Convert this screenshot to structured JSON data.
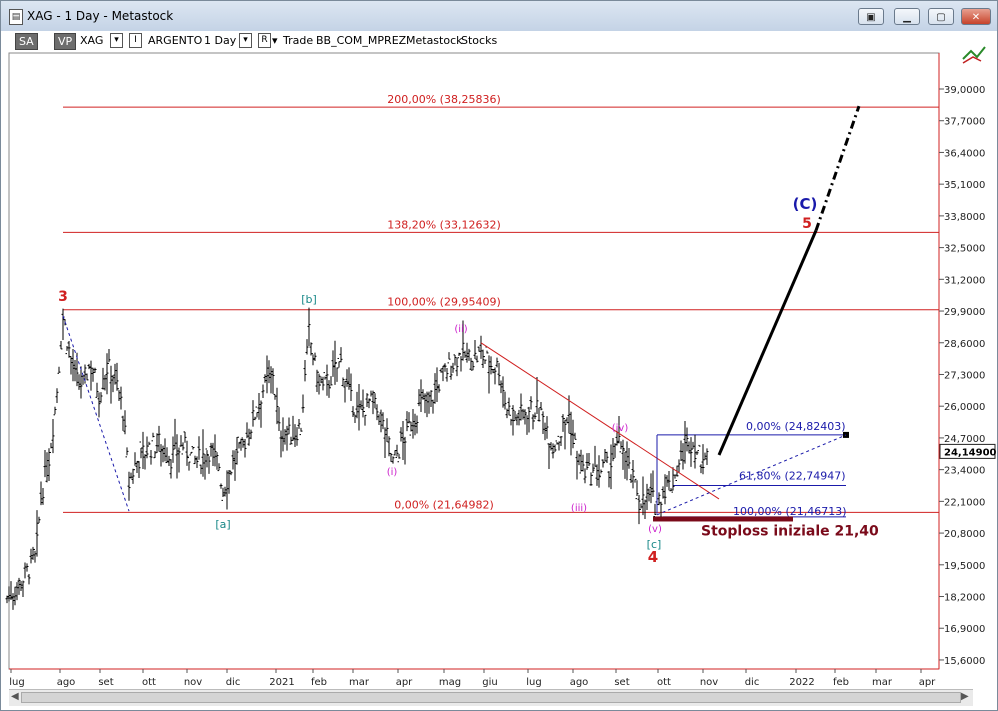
{
  "window": {
    "title": "XAG - 1 Day - Metastock",
    "icon": "chart-document-icon"
  },
  "toolbar": {
    "sa": "SA",
    "vp": "VP",
    "symbol": "XAG",
    "name": "ARGENTO",
    "period": "1 Day",
    "r_label": "R",
    "plan": "Trade",
    "template": "BB_COM_MPREZ",
    "source": "Metastock",
    "type": "Stocks"
  },
  "colors": {
    "accent_red": "#d02020",
    "wave_magenta": "#cc22cc",
    "wave_teal": "#188888",
    "fib_blue": "#1a1aaa",
    "stoploss": "#7a0a1a"
  },
  "chart_data": {
    "type": "ohlc",
    "y_ticks": [
      "39,0000",
      "37,7000",
      "36,4000",
      "35,1000",
      "33,8000",
      "32,5000",
      "31,2000",
      "29,9000",
      "28,6000",
      "27,3000",
      "26,0000",
      "24,7000",
      "23,4000",
      "22,1000",
      "20,8000",
      "19,5000",
      "18,2000",
      "16,9000",
      "15,6000"
    ],
    "x_ticks": [
      "lug",
      "ago",
      "set",
      "ott",
      "nov",
      "dic",
      "2021",
      "feb",
      "mar",
      "apr",
      "mag",
      "giu",
      "lug",
      "ago",
      "set",
      "ott",
      "nov",
      "dic",
      "2022",
      "feb",
      "mar",
      "apr"
    ],
    "last_price": "24,14900",
    "fib_levels": [
      {
        "label": "200,00% (38,25836)",
        "value": 38.258
      },
      {
        "label": "138,20% (33,12632)",
        "value": 33.126
      },
      {
        "label": "100,00% (29,95409)",
        "value": 29.954
      },
      {
        "label": "0,00% (21,64982)",
        "value": 21.65
      }
    ],
    "fib_right": [
      {
        "label": "0,00% (24,82403)",
        "value": 24.824
      },
      {
        "label": "61,80% (22,74947)",
        "value": 22.749
      },
      {
        "label": "100,00% (21,46713)",
        "value": 21.467
      }
    ],
    "wave_labels": [
      {
        "text": "3",
        "color": "red"
      },
      {
        "text": "[b]",
        "color": "teal"
      },
      {
        "text": "(ii)",
        "color": "magenta"
      },
      {
        "text": "(iv)",
        "color": "magenta"
      },
      {
        "text": "(C)",
        "color": "blue"
      },
      {
        "text": "5",
        "color": "red"
      },
      {
        "text": "(i)",
        "color": "magenta"
      },
      {
        "text": "[a]",
        "color": "teal"
      },
      {
        "text": "(iii)",
        "color": "magenta"
      },
      {
        "text": "(v)",
        "color": "magenta"
      },
      {
        "text": "[c]",
        "color": "teal"
      },
      {
        "text": "4",
        "color": "red"
      }
    ],
    "stoploss_label": "Stoploss iniziale 21,40"
  }
}
